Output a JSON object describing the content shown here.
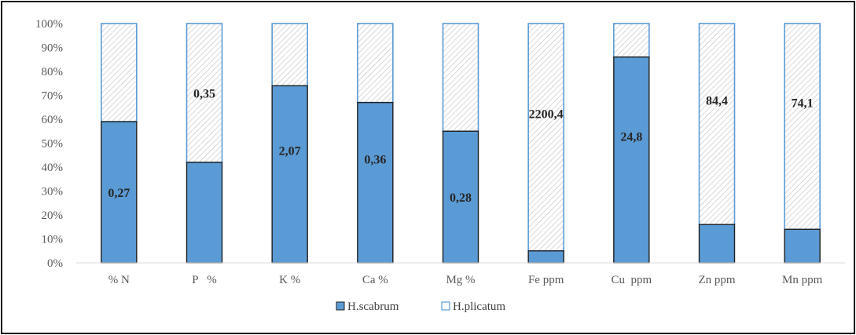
{
  "chart_data": {
    "type": "bar",
    "stacked": true,
    "percent": true,
    "categories": [
      "% N",
      "P   %",
      "K %",
      "Ca %",
      "Mg %",
      "Fe ppm",
      "Cu  ppm",
      "Zn ppm",
      "Mn ppm"
    ],
    "series": [
      {
        "name": "H.scabrum",
        "values": [
          59,
          42,
          74,
          67,
          55,
          5,
          86,
          16,
          14
        ],
        "color": "#5b9bd5"
      },
      {
        "name": "H.plicatum",
        "values": [
          41,
          58,
          26,
          33,
          45,
          95,
          14,
          84,
          86
        ],
        "color": "#ffffff",
        "pattern": "diagonal-hatch"
      }
    ],
    "data_labels": [
      {
        "category": "% N",
        "text": "0,27"
      },
      {
        "category": "P   %",
        "text": "0,35"
      },
      {
        "category": "K %",
        "text": "2,07"
      },
      {
        "category": "Ca %",
        "text": "0,36"
      },
      {
        "category": "Mg %",
        "text": "0,28"
      },
      {
        "category": "Fe ppm",
        "text": "2200,4"
      },
      {
        "category": "Cu  ppm",
        "text": "24,8"
      },
      {
        "category": "Zn ppm",
        "text": "84,4"
      },
      {
        "category": "Mn ppm",
        "text": "74,1"
      }
    ],
    "yticks": [
      "0%",
      "10%",
      "20%",
      "30%",
      "40%",
      "50%",
      "60%",
      "70%",
      "80%",
      "90%",
      "100%"
    ],
    "ylim": [
      0,
      100
    ],
    "grid": false,
    "legend": "bottom"
  }
}
